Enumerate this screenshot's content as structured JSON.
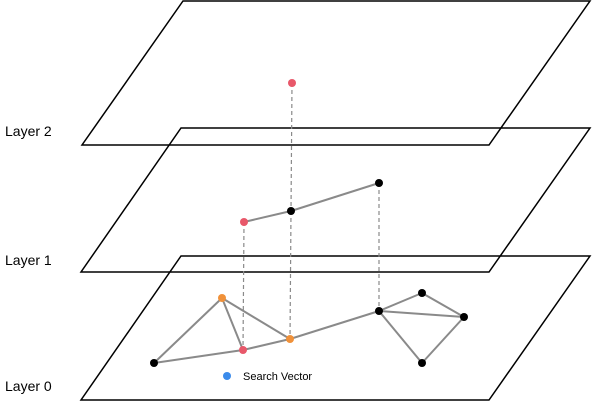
{
  "layers": [
    {
      "label": "Layer 2"
    },
    {
      "label": "Layer 1"
    },
    {
      "label": "Layer 0"
    }
  ],
  "legend": {
    "label": "Search Vector",
    "color": "#3b8beb"
  },
  "colors": {
    "plane_stroke": "#000000",
    "edge": "#8a8a8a",
    "connector": "#8a8a8a",
    "node_default": "#000000",
    "node_path": "#e8586a",
    "node_candidate": "#f0913a"
  }
}
